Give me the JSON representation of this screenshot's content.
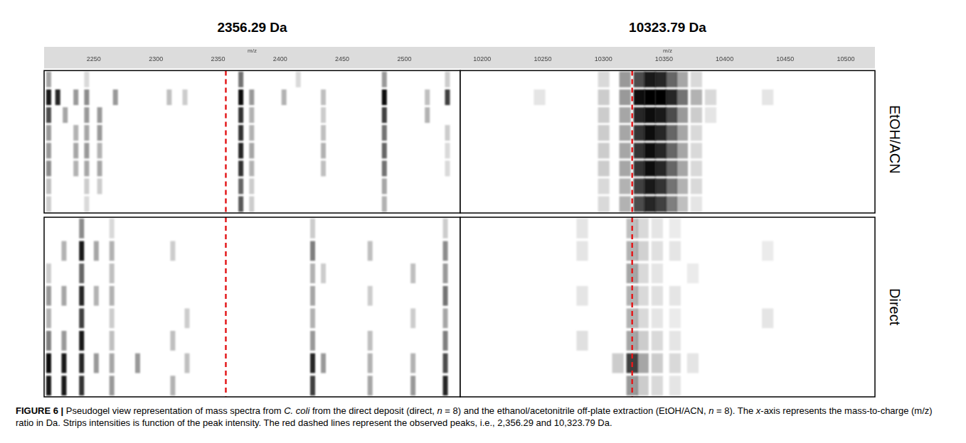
{
  "chart_data": [
    {
      "type": "pseudogel",
      "title": "2356.29 Da",
      "x_label": "m/z",
      "xlim": [
        2210,
        2545
      ],
      "xticks": [
        2250,
        2300,
        2350,
        2400,
        2450,
        2500
      ],
      "peak": {
        "value": 2356.29,
        "color": "#e31a1c",
        "line_style": "dashed"
      },
      "spectra": [
        [
          [
            [
              2213.7,
              35
            ],
            [
              2244.3,
              15
            ],
            [
              2368.4,
              55
            ],
            [
              2414.6,
              15
            ],
            [
              2483.9,
              40
            ],
            [
              2534.7,
              20
            ]
          ],
          [
            [
              2213.7,
              90
            ],
            [
              2221,
              85
            ],
            [
              2235.6,
              40
            ],
            [
              2244.3,
              45
            ],
            [
              2267.4,
              40
            ],
            [
              2310.7,
              25
            ],
            [
              2323.4,
              20
            ],
            [
              2368.4,
              95
            ],
            [
              2377.1,
              40
            ],
            [
              2403.1,
              30
            ],
            [
              2434.8,
              25
            ],
            [
              2483.9,
              95
            ],
            [
              2518.5,
              25
            ],
            [
              2534.7,
              75
            ]
          ],
          [
            [
              2213.7,
              70
            ],
            [
              2227,
              35
            ],
            [
              2244.3,
              40
            ],
            [
              2254.7,
              40
            ],
            [
              2368.4,
              80
            ],
            [
              2377.1,
              30
            ],
            [
              2434.8,
              20
            ],
            [
              2483.9,
              75
            ],
            [
              2518.5,
              30
            ]
          ],
          [
            [
              2213.7,
              40
            ],
            [
              2235.6,
              30
            ],
            [
              2244.3,
              35
            ],
            [
              2254.7,
              40
            ],
            [
              2368.4,
              80
            ],
            [
              2377.1,
              30
            ],
            [
              2434.8,
              25
            ],
            [
              2483.9,
              55
            ],
            [
              2534.7,
              20
            ]
          ],
          [
            [
              2213.7,
              40
            ],
            [
              2235.6,
              35
            ],
            [
              2244.3,
              40
            ],
            [
              2254.7,
              30
            ],
            [
              2368.4,
              85
            ],
            [
              2377.1,
              35
            ],
            [
              2434.8,
              30
            ],
            [
              2483.9,
              60
            ],
            [
              2534.7,
              15
            ]
          ],
          [
            [
              2213.7,
              45
            ],
            [
              2235.6,
              30
            ],
            [
              2244.3,
              35
            ],
            [
              2254.7,
              35
            ],
            [
              2368.4,
              80
            ],
            [
              2377.1,
              30
            ],
            [
              2434.8,
              25
            ],
            [
              2483.9,
              55
            ],
            [
              2534.7,
              15
            ]
          ],
          [
            [
              2213.7,
              25
            ],
            [
              2244.3,
              20
            ],
            [
              2254.7,
              20
            ],
            [
              2368.4,
              60
            ],
            [
              2377.1,
              20
            ],
            [
              2483.9,
              35
            ]
          ],
          [
            [
              2213.7,
              20
            ],
            [
              2244.3,
              15
            ],
            [
              2368.4,
              65
            ],
            [
              2377.1,
              20
            ],
            [
              2483.9,
              30
            ]
          ]
        ],
        [
          [
            [
              2240.2,
              45
            ],
            [
              2264.5,
              15
            ],
            [
              2426.2,
              20
            ],
            [
              2533,
              20
            ]
          ],
          [
            [
              2226,
              30
            ],
            [
              2240.2,
              90
            ],
            [
              2252,
              35
            ],
            [
              2264.5,
              30
            ],
            [
              2313.6,
              20
            ],
            [
              2426.2,
              50
            ],
            [
              2472.4,
              25
            ],
            [
              2533,
              45
            ]
          ],
          [
            [
              2213.7,
              20
            ],
            [
              2240.2,
              60
            ],
            [
              2264.5,
              25
            ],
            [
              2426.2,
              30
            ],
            [
              2434.8,
              20
            ],
            [
              2507,
              25
            ],
            [
              2533,
              40
            ]
          ],
          [
            [
              2213.7,
              40
            ],
            [
              2226,
              35
            ],
            [
              2240.2,
              85
            ],
            [
              2252,
              30
            ],
            [
              2264.5,
              30
            ],
            [
              2426.2,
              35
            ],
            [
              2472.4,
              20
            ],
            [
              2533,
              55
            ]
          ],
          [
            [
              2213.7,
              30
            ],
            [
              2240.2,
              75
            ],
            [
              2264.5,
              20
            ],
            [
              2325.1,
              20
            ],
            [
              2426.2,
              30
            ],
            [
              2507,
              20
            ],
            [
              2533,
              35
            ]
          ],
          [
            [
              2213.7,
              50
            ],
            [
              2226,
              40
            ],
            [
              2240.2,
              90
            ],
            [
              2264.5,
              25
            ],
            [
              2313.6,
              25
            ],
            [
              2426.2,
              40
            ],
            [
              2472.4,
              25
            ],
            [
              2533,
              50
            ]
          ],
          [
            [
              2213.7,
              95
            ],
            [
              2226,
              90
            ],
            [
              2240.2,
              85
            ],
            [
              2252,
              40
            ],
            [
              2264.5,
              35
            ],
            [
              2285.3,
              40
            ],
            [
              2325.1,
              25
            ],
            [
              2426.2,
              85
            ],
            [
              2434.8,
              40
            ],
            [
              2472.4,
              30
            ],
            [
              2507,
              30
            ],
            [
              2533,
              70
            ]
          ],
          [
            [
              2213.7,
              90
            ],
            [
              2226,
              90
            ],
            [
              2240.2,
              80
            ],
            [
              2264.5,
              40
            ],
            [
              2313.6,
              30
            ],
            [
              2426.2,
              75
            ],
            [
              2472.4,
              35
            ],
            [
              2507,
              40
            ],
            [
              2533,
              85
            ]
          ]
        ]
      ]
    },
    {
      "type": "pseudogel",
      "title": "10323.79 Da",
      "x_label": "m/z",
      "xlim": [
        10182,
        10524
      ],
      "xticks": [
        10200,
        10250,
        10300,
        10350,
        10400,
        10450,
        10500
      ],
      "peak": {
        "value": 10323.79,
        "color": "#e31a1c",
        "line_style": "dashed"
      },
      "spectra": [
        [
          [
            [
              10300.3,
              15
            ],
            [
              10317.9,
              40
            ],
            [
              10329.7,
              70
            ],
            [
              10338.5,
              90
            ],
            [
              10347.3,
              85
            ],
            [
              10356.1,
              60
            ],
            [
              10365,
              35
            ],
            [
              10376.7,
              15
            ]
          ],
          [
            [
              10247.4,
              10
            ],
            [
              10300.3,
              20
            ],
            [
              10317.9,
              40
            ],
            [
              10329.7,
              95
            ],
            [
              10338.5,
              100
            ],
            [
              10347.3,
              100
            ],
            [
              10356.1,
              85
            ],
            [
              10365,
              55
            ],
            [
              10376.7,
              30
            ],
            [
              10388.5,
              15
            ],
            [
              10435.5,
              10
            ]
          ],
          [
            [
              10300.3,
              20
            ],
            [
              10317.9,
              35
            ],
            [
              10329.7,
              85
            ],
            [
              10338.5,
              95
            ],
            [
              10347.3,
              90
            ],
            [
              10356.1,
              70
            ],
            [
              10365,
              40
            ],
            [
              10376.7,
              20
            ],
            [
              10388.5,
              10
            ]
          ],
          [
            [
              10300.3,
              20
            ],
            [
              10317.9,
              35
            ],
            [
              10329.7,
              80
            ],
            [
              10338.5,
              95
            ],
            [
              10347.3,
              85
            ],
            [
              10356.1,
              60
            ],
            [
              10365,
              35
            ],
            [
              10376.7,
              15
            ]
          ],
          [
            [
              10300.3,
              20
            ],
            [
              10317.9,
              35
            ],
            [
              10329.7,
              80
            ],
            [
              10338.5,
              95
            ],
            [
              10347.3,
              85
            ],
            [
              10356.1,
              60
            ],
            [
              10365,
              35
            ],
            [
              10376.7,
              15
            ]
          ],
          [
            [
              10300.3,
              20
            ],
            [
              10317.9,
              35
            ],
            [
              10329.7,
              80
            ],
            [
              10338.5,
              95
            ],
            [
              10347.3,
              85
            ],
            [
              10356.1,
              60
            ],
            [
              10365,
              35
            ],
            [
              10376.7,
              15
            ]
          ],
          [
            [
              10300.3,
              15
            ],
            [
              10317.9,
              30
            ],
            [
              10329.7,
              75
            ],
            [
              10338.5,
              90
            ],
            [
              10347.3,
              80
            ],
            [
              10356.1,
              55
            ],
            [
              10365,
              30
            ],
            [
              10376.7,
              15
            ]
          ],
          [
            [
              10300.3,
              15
            ],
            [
              10317.9,
              30
            ],
            [
              10329.7,
              70
            ],
            [
              10338.5,
              85
            ],
            [
              10347.3,
              75
            ],
            [
              10356.1,
              50
            ],
            [
              10365,
              25
            ],
            [
              10376.7,
              10
            ]
          ]
        ],
        [
          [
            [
              10282.6,
              10
            ],
            [
              10323.8,
              25
            ],
            [
              10332.6,
              15
            ],
            [
              10344.4,
              10
            ],
            [
              10359.1,
              8
            ]
          ],
          [
            [
              10282.6,
              10
            ],
            [
              10323.8,
              30
            ],
            [
              10332.6,
              18
            ],
            [
              10344.4,
              12
            ],
            [
              10359.1,
              10
            ],
            [
              10435.5,
              8
            ]
          ],
          [
            [
              10323.8,
              35
            ],
            [
              10332.6,
              15
            ],
            [
              10344.4,
              10
            ],
            [
              10373.8,
              8
            ]
          ],
          [
            [
              10282.6,
              10
            ],
            [
              10323.8,
              30
            ],
            [
              10332.6,
              15
            ],
            [
              10344.4,
              12
            ],
            [
              10359.1,
              10
            ]
          ],
          [
            [
              10323.8,
              30
            ],
            [
              10332.6,
              15
            ],
            [
              10344.4,
              10
            ],
            [
              10359.1,
              8
            ],
            [
              10435.5,
              10
            ]
          ],
          [
            [
              10282.6,
              12
            ],
            [
              10323.8,
              35
            ],
            [
              10332.6,
              20
            ],
            [
              10344.4,
              15
            ],
            [
              10359.1,
              10
            ]
          ],
          [
            [
              10312,
              20
            ],
            [
              10323.8,
              75
            ],
            [
              10332.6,
              35
            ],
            [
              10344.4,
              20
            ],
            [
              10359.1,
              15
            ],
            [
              10373.8,
              10
            ]
          ],
          [
            [
              10323.8,
              40
            ],
            [
              10332.6,
              20
            ],
            [
              10344.4,
              15
            ],
            [
              10359.1,
              10
            ]
          ]
        ]
      ]
    }
  ],
  "row_groups": [
    "EtOH/ACN",
    "Direct"
  ],
  "caption": [
    {
      "text": "FIGURE 6 |",
      "bold": true
    },
    {
      "text": " Pseudogel view representation of mass spectra from "
    },
    {
      "text": "C. coli",
      "italic": true
    },
    {
      "text": " from the direct deposit (direct, "
    },
    {
      "text": "n",
      "italic": true
    },
    {
      "text": " = 8) and the ethanol/acetonitrile off-plate extraction (EtOH/ACN, "
    },
    {
      "text": "n",
      "italic": true
    },
    {
      "text": " = 8). The "
    },
    {
      "text": "x",
      "italic": true
    },
    {
      "text": "-axis represents the mass-to-charge (m/z) ratio in Da. Strips intensities is function of the peak intensity. The red dashed lines represent the observed peaks, i.e., 2,356.29 and 10,323.79 Da."
    }
  ]
}
